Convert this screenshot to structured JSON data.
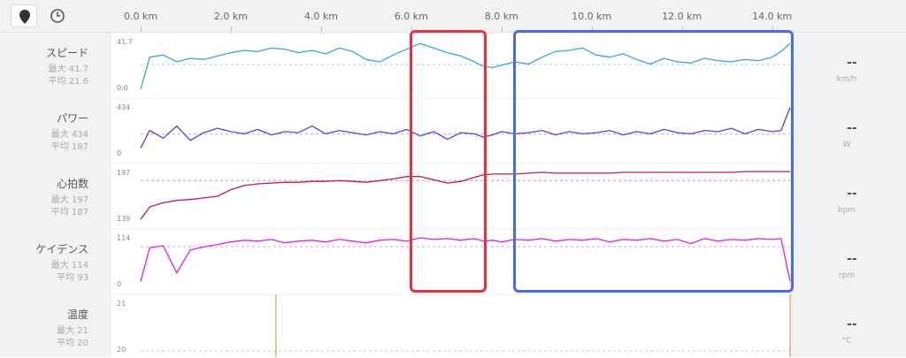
{
  "toolbar": {
    "buttons": [
      {
        "icon": "map-pin-icon",
        "active": true
      },
      {
        "icon": "clock-icon",
        "active": false
      }
    ]
  },
  "chart_data": {
    "type": "line",
    "x_axis": {
      "unit": "km",
      "range": [
        0,
        14.4
      ],
      "ticks": [
        "0.0 km",
        "2.0 km",
        "4.0 km",
        "6.0 km",
        "8.0 km",
        "10.0 km",
        "12.0 km",
        "14.0 km"
      ]
    },
    "series": [
      {
        "name": "スピード",
        "max_label": "最大 41.7",
        "avg_label": "平均 21.6",
        "max": 41.7,
        "avg": 21.6,
        "ylim": [
          0.0,
          41.7
        ],
        "ytop_label": "41.7",
        "ybottom_label": "0.0",
        "current": "--",
        "unit": "km/h",
        "color": "#3aa6d6",
        "x": [
          0,
          0.2,
          0.5,
          0.8,
          1.1,
          1.4,
          1.7,
          2.0,
          2.3,
          2.6,
          2.9,
          3.2,
          3.5,
          3.8,
          4.1,
          4.4,
          4.7,
          5.0,
          5.3,
          5.6,
          5.9,
          6.2,
          6.5,
          6.8,
          7.1,
          7.4,
          7.6,
          7.8,
          8.0,
          8.3,
          8.6,
          8.9,
          9.2,
          9.5,
          9.8,
          10.1,
          10.4,
          10.7,
          11.0,
          11.3,
          11.6,
          11.9,
          12.2,
          12.5,
          12.8,
          13.1,
          13.4,
          13.7,
          14.0,
          14.2,
          14.4
        ],
        "values": [
          0,
          28,
          30,
          24,
          27,
          26,
          29,
          32,
          34,
          33,
          36,
          35,
          32,
          34,
          31,
          36,
          33,
          26,
          24,
          30,
          35,
          40,
          36,
          32,
          29,
          24,
          20,
          19,
          21,
          24,
          22,
          28,
          33,
          34,
          36,
          30,
          28,
          31,
          26,
          22,
          27,
          24,
          23,
          27,
          25,
          24,
          26,
          25,
          28,
          33,
          40
        ]
      },
      {
        "name": "パワー",
        "max_label": "最大 434",
        "avg_label": "平均 187",
        "max": 434,
        "avg": 187,
        "ylim": [
          0,
          434
        ],
        "ytop_label": "434",
        "ybottom_label": "0",
        "current": "--",
        "unit": "W",
        "color": "#6a3cc8",
        "x": [
          0,
          0.2,
          0.5,
          0.8,
          1.1,
          1.4,
          1.7,
          2.0,
          2.3,
          2.6,
          2.9,
          3.2,
          3.5,
          3.8,
          4.1,
          4.4,
          4.7,
          5.0,
          5.3,
          5.6,
          5.9,
          6.2,
          6.5,
          6.8,
          7.1,
          7.4,
          7.6,
          7.8,
          8.0,
          8.3,
          8.6,
          8.9,
          9.2,
          9.5,
          9.8,
          10.1,
          10.4,
          10.7,
          11.0,
          11.3,
          11.6,
          11.9,
          12.2,
          12.5,
          12.8,
          13.1,
          13.4,
          13.7,
          14.0,
          14.2,
          14.4
        ],
        "values": [
          60,
          220,
          150,
          260,
          130,
          200,
          240,
          210,
          190,
          230,
          180,
          210,
          200,
          260,
          190,
          220,
          200,
          180,
          210,
          190,
          230,
          170,
          210,
          140,
          200,
          190,
          160,
          180,
          210,
          190,
          200,
          220,
          180,
          210,
          190,
          200,
          220,
          180,
          210,
          190,
          230,
          200,
          190,
          220,
          210,
          240,
          190,
          230,
          210,
          220,
          430
        ]
      },
      {
        "name": "心拍数",
        "max_label": "最大 197",
        "avg_label": "平均 187",
        "max": 197,
        "avg": 187,
        "ylim": [
          139,
          197
        ],
        "ytop_label": "197",
        "ybottom_label": "139",
        "current": "--",
        "unit": "bpm",
        "color": "#c21852",
        "x": [
          0,
          0.2,
          0.5,
          0.8,
          1.1,
          1.4,
          1.7,
          2.0,
          2.3,
          2.6,
          2.9,
          3.2,
          3.5,
          3.8,
          4.1,
          4.4,
          4.7,
          5.0,
          5.3,
          5.6,
          5.9,
          6.2,
          6.5,
          6.8,
          7.1,
          7.4,
          7.6,
          7.8,
          8.0,
          8.3,
          8.6,
          8.9,
          9.2,
          9.5,
          9.8,
          10.1,
          10.4,
          10.7,
          11.0,
          11.3,
          11.6,
          11.9,
          12.2,
          12.5,
          12.8,
          13.1,
          13.4,
          13.7,
          14.0,
          14.2,
          14.4
        ],
        "values": [
          140,
          155,
          160,
          163,
          164,
          166,
          168,
          176,
          181,
          183,
          184,
          185,
          185,
          186,
          186,
          187,
          186,
          185,
          187,
          189,
          192,
          192,
          188,
          184,
          186,
          191,
          194,
          195,
          195,
          195,
          196,
          197,
          196,
          196,
          196,
          196,
          196,
          197,
          197,
          197,
          197,
          197,
          197,
          197,
          197,
          197,
          198,
          198,
          198,
          198,
          198
        ]
      },
      {
        "name": "ケイデンス",
        "max_label": "最大 114",
        "avg_label": "平均 93",
        "max": 114,
        "avg": 93,
        "ylim": [
          0,
          114
        ],
        "ytop_label": "114",
        "ybottom_label": "0",
        "current": "--",
        "unit": "rpm",
        "color": "#e020e0",
        "x": [
          0,
          0.2,
          0.5,
          0.8,
          1.1,
          1.4,
          1.7,
          2.0,
          2.3,
          2.6,
          2.9,
          3.2,
          3.5,
          3.8,
          4.1,
          4.4,
          4.7,
          5.0,
          5.3,
          5.6,
          5.9,
          6.2,
          6.5,
          6.8,
          7.1,
          7.4,
          7.6,
          7.8,
          8.0,
          8.3,
          8.6,
          8.9,
          9.2,
          9.5,
          9.8,
          10.1,
          10.4,
          10.7,
          11.0,
          11.3,
          11.6,
          11.9,
          12.2,
          12.5,
          12.8,
          13.1,
          13.4,
          13.7,
          14.0,
          14.2,
          14.4
        ],
        "values": [
          10,
          90,
          95,
          30,
          85,
          92,
          98,
          104,
          108,
          106,
          110,
          102,
          106,
          108,
          104,
          110,
          106,
          102,
          108,
          110,
          106,
          114,
          110,
          112,
          108,
          112,
          106,
          108,
          104,
          110,
          108,
          112,
          106,
          110,
          108,
          112,
          104,
          110,
          108,
          112,
          106,
          110,
          100,
          112,
          106,
          110,
          108,
          112,
          110,
          112,
          10
        ]
      },
      {
        "name": "温度",
        "max_label": "最大 21",
        "avg_label": "平均 20",
        "max": 21,
        "avg": 20,
        "ylim": [
          20,
          21
        ],
        "ytop_label": "21",
        "ybottom_label": "20",
        "current": "--",
        "unit": "°C",
        "color": "#b89a40",
        "x": [],
        "values": []
      }
    ]
  },
  "highlights": [
    {
      "color": "#e8313a",
      "x_range": [
        6.0,
        7.6
      ]
    },
    {
      "color": "#4a6ae8",
      "x_range": [
        8.3,
        14.4
      ]
    }
  ]
}
